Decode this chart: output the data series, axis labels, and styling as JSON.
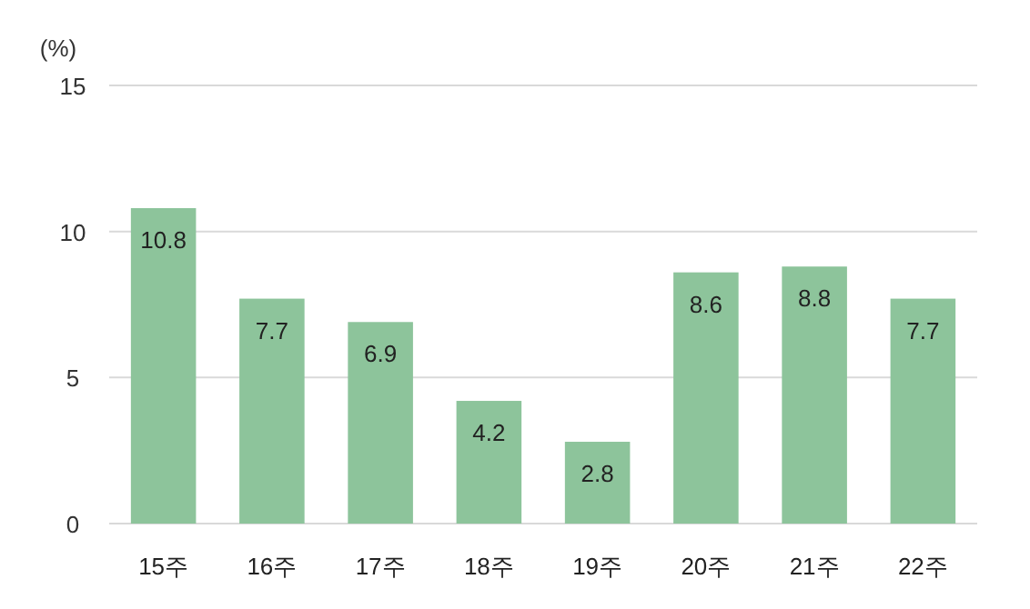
{
  "chart_data": {
    "type": "bar",
    "ylabel": "(%)",
    "categories": [
      "15주",
      "16주",
      "17주",
      "18주",
      "19주",
      "20주",
      "21주",
      "22주"
    ],
    "values": [
      10.8,
      7.7,
      6.9,
      4.2,
      2.8,
      8.6,
      8.8,
      7.7
    ],
    "color": "#8dc49b",
    "ylim": [
      0,
      15
    ],
    "yticks": [
      0,
      5,
      10,
      15
    ],
    "grid": "y",
    "data_labels": true
  }
}
